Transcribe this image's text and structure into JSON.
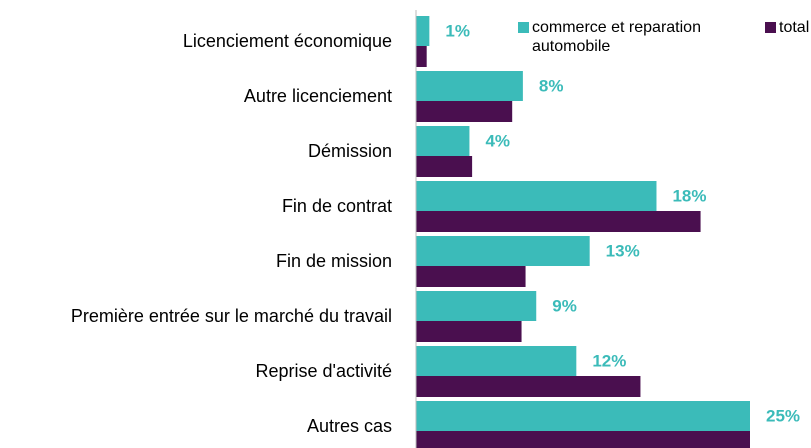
{
  "chart_data": {
    "type": "bar",
    "orientation": "horizontal",
    "categories": [
      "Licenciement économique",
      "Autre licenciement",
      "Démission",
      "Fin de contrat",
      "Fin de mission",
      "Première entrée sur le marché du travail",
      "Reprise d'activité",
      "Autres cas"
    ],
    "series": [
      {
        "name": "commerce et reparation automobile",
        "color": "#3bbbb9",
        "values": [
          1,
          8,
          4,
          18,
          13,
          9,
          12,
          25
        ],
        "value_labels": [
          "1%",
          "8%",
          "4%",
          "18%",
          "13%",
          "9%",
          "12%",
          "25%"
        ]
      },
      {
        "name": "total",
        "color": "#4a0f4f",
        "values": [
          0.8,
          7.2,
          4.2,
          21.3,
          8.2,
          7.9,
          16.8,
          25
        ]
      }
    ],
    "xlim": [
      0,
      25
    ],
    "legend": "top-right"
  }
}
